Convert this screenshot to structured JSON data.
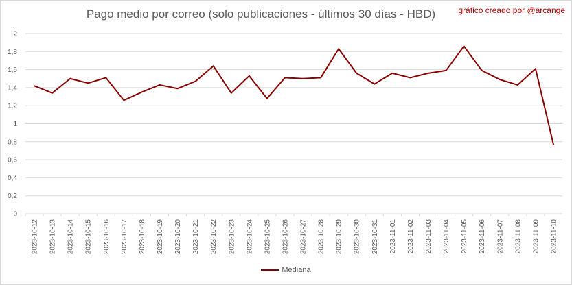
{
  "chart_title": "Pago medio por correo (solo publicaciones - últimos 30 días - HBD)",
  "credit": "gráfico creado por @arcange",
  "colors": {
    "series": "#8b0000",
    "credit": "#c00000",
    "grid": "#d9d9d9",
    "text": "#595959"
  },
  "chart_data": {
    "type": "line",
    "title": "Pago medio por correo (solo publicaciones - últimos 30 días - HBD)",
    "xlabel": "",
    "ylabel": "",
    "ylim": [
      0,
      2
    ],
    "y_ticks": [
      "0",
      "0,2",
      "0,4",
      "0,6",
      "0,8",
      "1",
      "1,2",
      "1,4",
      "1,6",
      "1,8",
      "2"
    ],
    "grid": true,
    "legend_position": "bottom",
    "categories": [
      "2023-10-12",
      "2023-10-13",
      "2023-10-14",
      "2023-10-15",
      "2023-10-16",
      "2023-10-17",
      "2023-10-18",
      "2023-10-19",
      "2023-10-20",
      "2023-10-21",
      "2023-10-22",
      "2023-10-23",
      "2023-10-24",
      "2023-10-25",
      "2023-10-26",
      "2023-10-27",
      "2023-10-28",
      "2023-10-29",
      "2023-10-30",
      "2023-10-31",
      "2023-11-01",
      "2023-11-02",
      "2023-11-03",
      "2023-11-04",
      "2023-11-05",
      "2023-11-06",
      "2023-11-07",
      "2023-11-08",
      "2023-11-09",
      "2023-11-10"
    ],
    "series": [
      {
        "name": "Mediana",
        "values": [
          1.42,
          1.34,
          1.5,
          1.45,
          1.51,
          1.26,
          1.35,
          1.43,
          1.39,
          1.47,
          1.64,
          1.34,
          1.53,
          1.28,
          1.51,
          1.5,
          1.51,
          1.83,
          1.56,
          1.44,
          1.56,
          1.51,
          1.56,
          1.59,
          1.86,
          1.59,
          1.49,
          1.43,
          1.61,
          0.77
        ]
      }
    ]
  }
}
